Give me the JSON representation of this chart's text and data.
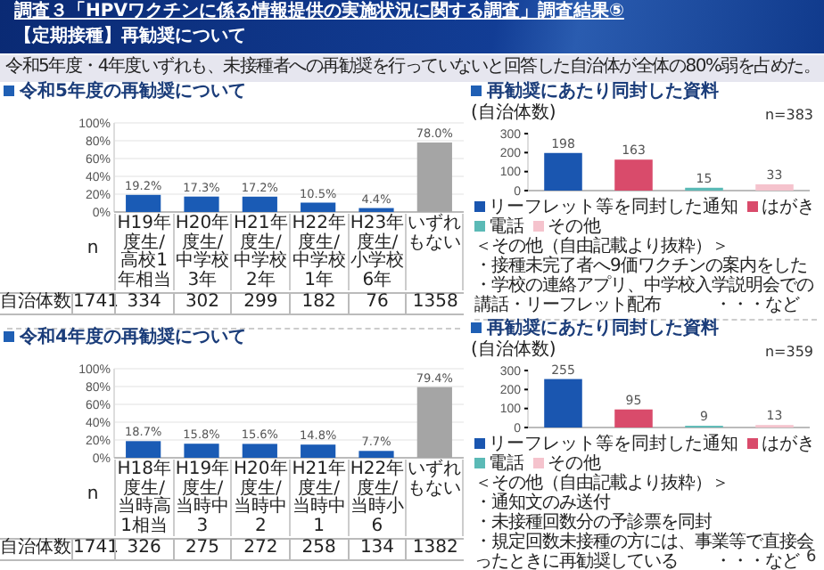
{
  "chart_data": [
    {
      "type": "other",
      "title": "調査３「HPVワクチンに係る情報提供の実施状況に関する調査」調査結果⑤",
      "subtitle": "【定期接種】再勧奨について",
      "annotations": [
        "令和5年度・4年度いずれも、未接種者への再勧奨を行っていないと回答した自治体が全体の80%弱を占めた。",
        "6"
      ]
    },
    {
      "type": "bar",
      "title": "令和5年度の再勧奨について",
      "categories": [
        "H19年度生/高校1年相当",
        "H20年度生/中学校3年",
        "H21年度生/中学校2年",
        "H22年度生/中学校1年",
        "H23年度生/小学校6年",
        "いずれもない"
      ],
      "values": [
        19.2,
        17.3,
        17.2,
        10.5,
        4.4,
        78.0
      ],
      "colors": [
        "#1a5bb5",
        "#1a5bb5",
        "#1a5bb5",
        "#1a5bb5",
        "#1a5bb5",
        "#a5a5a5"
      ],
      "value_labels": [
        "19.2%",
        "17.3%",
        "17.2%",
        "10.5%",
        "4.4%",
        "78.0%"
      ],
      "ylim": [
        0,
        100
      ],
      "yticks": [
        {
          "value": 0,
          "label": "0%"
        },
        {
          "value": 20,
          "label": "20%"
        },
        {
          "value": 40,
          "label": "40%"
        },
        {
          "value": 60,
          "label": "60%"
        },
        {
          "value": 80,
          "label": "80%"
        },
        {
          "value": 100,
          "label": "100%"
        }
      ],
      "grid": "y",
      "annotations": [
        "n",
        "自治体数",
        "1741",
        "334",
        "302",
        "299",
        "182",
        "76",
        "1358"
      ]
    },
    {
      "type": "bar",
      "title": "再勧奨にあたり同封した資料",
      "ylabel": "(自治体数)",
      "categories": [
        null,
        null,
        null,
        null
      ],
      "series": [
        {
          "name": "リーフレット等を同封した通知",
          "color": "#1a56b0",
          "values": [
            198,
            null,
            null,
            null
          ]
        },
        {
          "name": "はがき",
          "color": "#d94b6b",
          "values": [
            null,
            163,
            null,
            null
          ]
        },
        {
          "name": "電話",
          "color": "#5bbab6",
          "values": [
            null,
            null,
            15,
            null
          ]
        },
        {
          "name": "その他",
          "color": "#f5c3cd",
          "values": [
            null,
            null,
            null,
            33
          ]
        }
      ],
      "ylim": [
        0,
        300
      ],
      "yticks": [
        0,
        100,
        200,
        300
      ],
      "data_labels": true,
      "legend": "bottom",
      "annotations": [
        "n=383",
        "＜その他（自由記載より抜粋）＞",
        "・接種未完了者へ9価ワクチンの案内をした",
        "・学校の連絡アプリ、中学校入学説明会での講話・リーフレット配布",
        "・・・など"
      ]
    },
    {
      "type": "bar",
      "title": "令和4年度の再勧奨について",
      "categories": [
        "H18年度生/当時高1相当",
        "H19年度生/当時中3",
        "H20年度生/当時中2",
        "H21年度生/当時中1",
        "H22年度生/当時小6",
        "いずれもない"
      ],
      "values": [
        18.7,
        15.8,
        15.6,
        14.8,
        7.7,
        79.4
      ],
      "colors": [
        "#1a5bb5",
        "#1a5bb5",
        "#1a5bb5",
        "#1a5bb5",
        "#1a5bb5",
        "#a5a5a5"
      ],
      "value_labels": [
        "18.7%",
        "15.8%",
        "15.6%",
        "14.8%",
        "7.7%",
        "79.4%"
      ],
      "ylim": [
        0,
        100
      ],
      "yticks": [
        {
          "value": 0,
          "label": "0%"
        },
        {
          "value": 20,
          "label": "20%"
        },
        {
          "value": 40,
          "label": "40%"
        },
        {
          "value": 60,
          "label": "60%"
        },
        {
          "value": 80,
          "label": "80%"
        },
        {
          "value": 100,
          "label": "100%"
        }
      ],
      "grid": "y",
      "annotations": [
        "n",
        "自治体数",
        "1741",
        "326",
        "275",
        "272",
        "258",
        "134",
        "1382"
      ]
    },
    {
      "type": "bar",
      "title": "再勧奨にあたり同封した資料",
      "ylabel": "(自治体数)",
      "categories": [
        null,
        null,
        null,
        null
      ],
      "series": [
        {
          "name": "リーフレット等を同封した通知",
          "color": "#1a56b0",
          "values": [
            255,
            null,
            null,
            null
          ]
        },
        {
          "name": "はがき",
          "color": "#d94b6b",
          "values": [
            null,
            95,
            null,
            null
          ]
        },
        {
          "name": "電話",
          "color": "#5bbab6",
          "values": [
            null,
            null,
            9,
            null
          ]
        },
        {
          "name": "その他",
          "color": "#f5c3cd",
          "values": [
            null,
            null,
            null,
            13
          ]
        }
      ],
      "ylim": [
        0,
        300
      ],
      "yticks": [
        0,
        100,
        200,
        300
      ],
      "data_labels": true,
      "legend": "bottom",
      "annotations": [
        "n=359",
        "＜その他（自由記載より抜粋）＞",
        "・通知文のみ送付",
        "・未接種回数分の予診票を同封",
        "・規定回数未接種の方には、事業等で直接会ったときに再勧奨している",
        "・・・など"
      ]
    }
  ]
}
